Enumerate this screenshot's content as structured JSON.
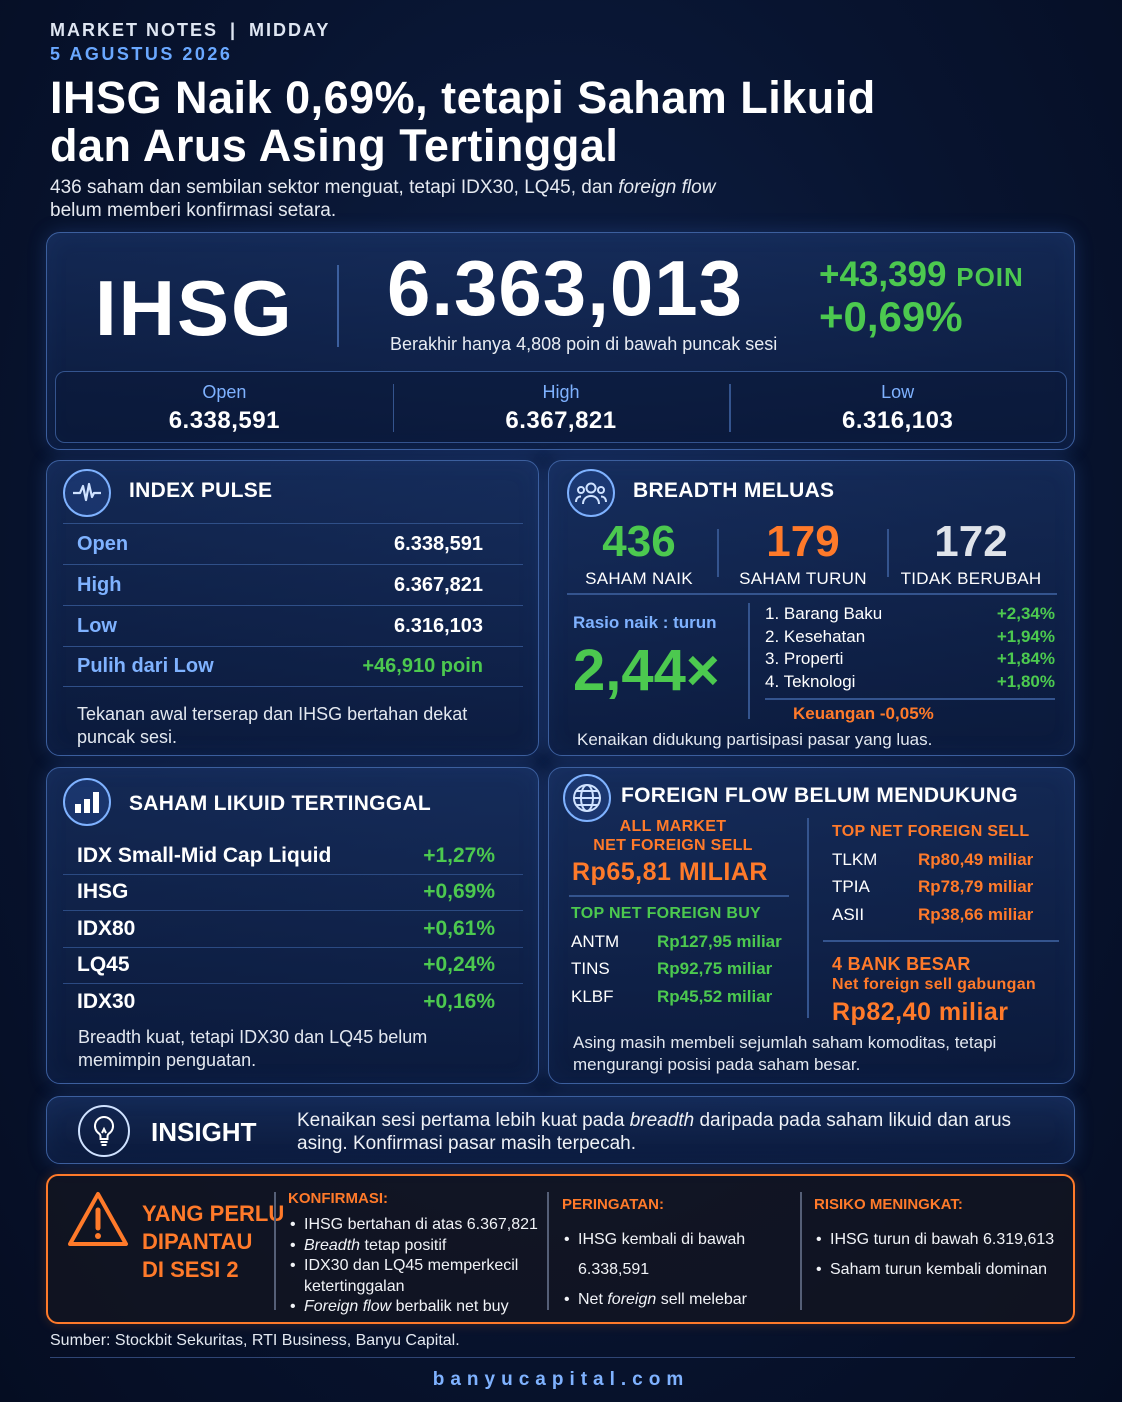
{
  "header": {
    "eyebrow_left": "MARKET NOTES",
    "eyebrow_sep": "|",
    "eyebrow_right": "MIDDAY",
    "date": "5 AGUSTUS 2026",
    "headline_line1": "IHSG Naik 0,69%, tetapi Saham Likuid",
    "headline_line2": "dan Arus Asing Tertinggal",
    "sub_part1": "436 saham dan sembilan sektor menguat, tetapi IDX30, LQ45, dan ",
    "sub_italic": "foreign flow",
    "sub_part2": "belum memberi konfirmasi setara."
  },
  "hero": {
    "label": "IHSG",
    "value": "6.363,013",
    "note": "Berakhir hanya 4,808 poin di bawah puncak sesi",
    "delta_points": "+43,399",
    "delta_unit": "POIN",
    "delta_pct": "+0,69%",
    "ohl": [
      {
        "label": "Open",
        "value": "6.338,591"
      },
      {
        "label": "High",
        "value": "6.367,821"
      },
      {
        "label": "Low",
        "value": "6.316,103"
      }
    ]
  },
  "pulse": {
    "title": "INDEX PULSE",
    "icon": "pulse-icon",
    "rows": [
      {
        "k": "Open",
        "v": "6.338,591"
      },
      {
        "k": "High",
        "v": "6.367,821"
      },
      {
        "k": "Low",
        "v": "6.316,103"
      },
      {
        "k": "Pulih dari Low",
        "v": "+46,910 poin"
      }
    ],
    "note": "Tekanan awal terserap dan IHSG bertahan dekat puncak sesi."
  },
  "breadth": {
    "title": "BREADTH MELUAS",
    "icon": "people-icon",
    "stats": [
      {
        "num": "436",
        "label": "SAHAM NAIK",
        "color": "#4cc94f"
      },
      {
        "num": "179",
        "label": "SAHAM TURUN",
        "color": "#ff7a2a"
      },
      {
        "num": "172",
        "label": "TIDAK BERUBAH",
        "color": "#e0e4ea"
      }
    ],
    "ratio_label": "Rasio naik : turun",
    "ratio_value": "2,44×",
    "sectors": [
      {
        "name": "1.  Barang Baku",
        "value": "+2,34%"
      },
      {
        "name": "2.  Kesehatan",
        "value": "+1,94%"
      },
      {
        "name": "3.  Properti",
        "value": "+1,84%"
      },
      {
        "name": "4.  Teknologi",
        "value": "+1,80%"
      }
    ],
    "sector_negative": "Keuangan -0,05%",
    "note": "Kenaikan didukung partisipasi pasar yang luas."
  },
  "liquid": {
    "title": "SAHAM LIKUID TERTINGGAL",
    "icon": "bar-chart-icon",
    "rows": [
      {
        "k": "IDX Small-Mid Cap Liquid",
        "v": "+1,27%"
      },
      {
        "k": "IHSG",
        "v": "+0,69%"
      },
      {
        "k": "IDX80",
        "v": "+0,61%"
      },
      {
        "k": "LQ45",
        "v": "+0,24%"
      },
      {
        "k": "IDX30",
        "v": "+0,16%"
      }
    ],
    "note": "Breadth kuat, tetapi IDX30 dan LQ45 belum memimpin penguatan."
  },
  "foreign": {
    "title": "FOREIGN FLOW BELUM MENDUKUNG",
    "icon": "globe-icon",
    "all_market_label1": "ALL MARKET",
    "all_market_label2": "NET FOREIGN SELL",
    "all_market_value": "Rp65,81 MILIAR",
    "buy_title": "TOP NET FOREIGN BUY",
    "buy": [
      {
        "t": "ANTM",
        "v": "Rp127,95 miliar"
      },
      {
        "t": "TINS",
        "v": "Rp92,75 miliar"
      },
      {
        "t": "KLBF",
        "v": "Rp45,52 miliar"
      }
    ],
    "sell_title": "TOP NET FOREIGN SELL",
    "sell": [
      {
        "t": "TLKM",
        "v": "Rp80,49 miliar"
      },
      {
        "t": "TPIA",
        "v": "Rp78,79 miliar"
      },
      {
        "t": "ASII",
        "v": "Rp38,66 miliar"
      }
    ],
    "bank_title": "4 BANK BESAR",
    "bank_sub": "Net foreign sell gabungan",
    "bank_value": "Rp82,40 miliar",
    "note": "Asing masih membeli sejumlah saham komoditas, tetapi mengurangi posisi pada saham besar."
  },
  "insight": {
    "title": "INSIGHT",
    "icon": "lightbulb-icon",
    "text_part1": "Kenaikan sesi pertama lebih kuat pada ",
    "text_italic": "breadth",
    "text_part2": " daripada pada saham likuid dan arus asing. Konfirmasi pasar masih terpecah."
  },
  "watch": {
    "title_line1": "YANG PERLU",
    "title_line2": "DIPANTAU",
    "title_line3": "DI SESI 2",
    "icon": "warning-icon",
    "konfirmasi_title": "KONFIRMASI:",
    "konfirmasi_1": "IHSG bertahan di atas 6.367,821",
    "konfirmasi_2_italic": "Breadth",
    "konfirmasi_2_rest": " tetap positif",
    "konfirmasi_3": "IDX30 dan LQ45 memperkecil ketertinggalan",
    "konfirmasi_4_italic": "Foreign flow",
    "konfirmasi_4_rest": " berbalik net buy",
    "peringatan_title": "PERINGATAN:",
    "peringatan_1": "IHSG kembali di bawah 6.338,591",
    "peringatan_2_a": "Net ",
    "peringatan_2_italic": "foreign",
    "peringatan_2_b": " sell melebar",
    "risiko_title": "RISIKO MENINGKAT:",
    "risiko_1": "IHSG turun di bawah 6.319,613",
    "risiko_2": "Saham turun kembali dominan"
  },
  "source": "Sumber: Stockbit Sekuritas, RTI Business, Banyu Capital.",
  "footer": "banyucapital.com",
  "colors": {
    "green": "#4cc94f",
    "orange": "#ff7a2a",
    "blue": "#7fb2ff",
    "bg": "#081430"
  }
}
